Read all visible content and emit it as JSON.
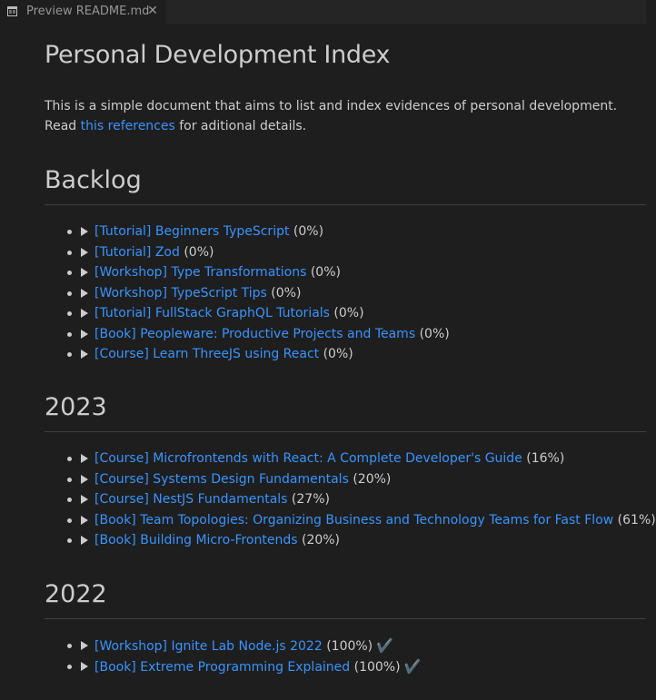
{
  "tab": {
    "label": "Preview README.md",
    "icon": "preview-icon",
    "close_icon": "close-icon"
  },
  "document": {
    "title": "Personal Development Index",
    "intro": {
      "text": "This is a simple document that aims to list and index evidences of personal development. Read",
      "link_text": "this references",
      "suffix": "for aditional details."
    },
    "sections": [
      {
        "heading": "Backlog",
        "items": [
          {
            "link": "[Tutorial] Beginners TypeScript",
            "progress": "(0%)",
            "done": false
          },
          {
            "link": "[Tutorial] Zod",
            "progress": "(0%)",
            "done": false
          },
          {
            "link": "[Workshop] Type Transformations",
            "progress": "(0%)",
            "done": false
          },
          {
            "link": "[Workshop] TypeScript Tips",
            "progress": "(0%)",
            "done": false
          },
          {
            "link": "[Tutorial] FullStack GraphQL Tutorials",
            "progress": "(0%)",
            "done": false
          },
          {
            "link": "[Book] Peopleware: Productive Projects and Teams",
            "progress": "(0%)",
            "done": false
          },
          {
            "link": "[Course] Learn ThreeJS using React",
            "progress": "(0%)",
            "done": false
          }
        ]
      },
      {
        "heading": "2023",
        "items": [
          {
            "link": "[Course] Microfrontends with React: A Complete Developer's Guide",
            "progress": "(16%)",
            "done": false
          },
          {
            "link": "[Course] Systems Design Fundamentals",
            "progress": "(20%)",
            "done": false
          },
          {
            "link": "[Course] NestJS Fundamentals",
            "progress": "(27%)",
            "done": false
          },
          {
            "link": "[Book] Team Topologies: Organizing Business and Technology Teams for Fast Flow",
            "progress": "(61%)",
            "done": false
          },
          {
            "link": "[Book] Building Micro-Frontends",
            "progress": "(20%)",
            "done": false
          }
        ]
      },
      {
        "heading": "2022",
        "items": [
          {
            "link": "[Workshop] Ignite Lab Node.js 2022",
            "progress": "(100%)",
            "done": true,
            "check": "✔️"
          },
          {
            "link": "[Book] Extreme Programming Explained",
            "progress": "(100%)",
            "done": true,
            "check": "✔️"
          }
        ]
      }
    ]
  },
  "colors": {
    "background": "#1e1e1e",
    "text": "#cccccc",
    "link": "#3794ff",
    "rule": "#404040"
  }
}
